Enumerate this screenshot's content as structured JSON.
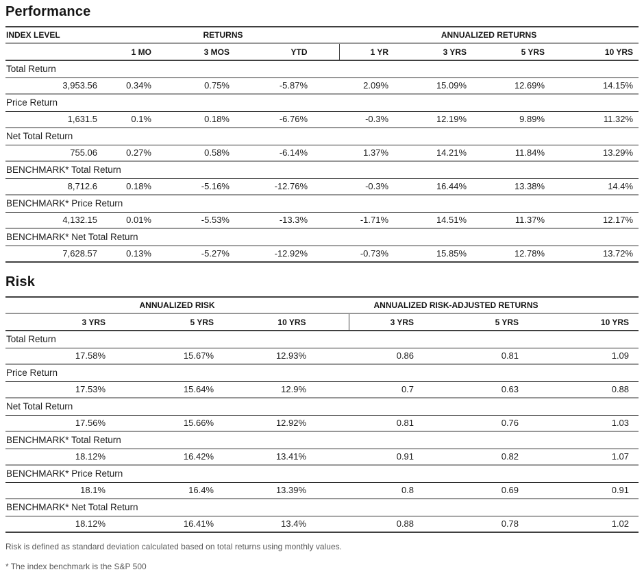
{
  "colors": {
    "rule_dark": "#404040",
    "rule_gray": "#979797",
    "text": "#141414",
    "footnote_text": "#595959"
  },
  "performance": {
    "title": "Performance",
    "headers": {
      "index_level": "INDEX LEVEL",
      "returns_group": "RETURNS",
      "annualized_group": "ANNUALIZED RETURNS",
      "sub": [
        "1 MO",
        "3 MOS",
        "YTD",
        "1 YR",
        "3 YRS",
        "5 YRS",
        "10 YRS"
      ]
    },
    "row_cell_keys": [
      "index_level",
      "returns",
      "annualized_returns"
    ],
    "rows": [
      {
        "label": "Total Return",
        "index_level": "3,953.56",
        "returns": [
          "0.34%",
          "0.75%",
          "-5.87%"
        ],
        "annualized_returns": [
          "2.09%",
          "15.09%",
          "12.69%",
          "14.15%"
        ]
      },
      {
        "label": "Price Return",
        "index_level": "1,631.5",
        "returns": [
          "0.1%",
          "0.18%",
          "-6.76%"
        ],
        "annualized_returns": [
          "-0.3%",
          "12.19%",
          "9.89%",
          "11.32%"
        ]
      },
      {
        "label": "Net Total Return",
        "index_level": "755.06",
        "returns": [
          "0.27%",
          "0.58%",
          "-6.14%"
        ],
        "annualized_returns": [
          "1.37%",
          "14.21%",
          "11.84%",
          "13.29%"
        ]
      },
      {
        "label": "BENCHMARK* Total Return",
        "index_level": "8,712.6",
        "returns": [
          "0.18%",
          "-5.16%",
          "-12.76%"
        ],
        "annualized_returns": [
          "-0.3%",
          "16.44%",
          "13.38%",
          "14.4%"
        ]
      },
      {
        "label": "BENCHMARK* Price Return",
        "index_level": "4,132.15",
        "returns": [
          "0.01%",
          "-5.53%",
          "-13.3%"
        ],
        "annualized_returns": [
          "-1.71%",
          "14.51%",
          "11.37%",
          "12.17%"
        ]
      },
      {
        "label": "BENCHMARK* Net Total Return",
        "index_level": "7,628.57",
        "returns": [
          "0.13%",
          "-5.27%",
          "-12.92%"
        ],
        "annualized_returns": [
          "-0.73%",
          "15.85%",
          "12.78%",
          "13.72%"
        ]
      }
    ]
  },
  "risk": {
    "title": "Risk",
    "headers": {
      "risk_group": "ANNUALIZED RISK",
      "risk_adjusted_group": "ANNUALIZED RISK-ADJUSTED RETURNS",
      "sub": [
        "3 YRS",
        "5 YRS",
        "10 YRS",
        "3 YRS",
        "5 YRS",
        "10 YRS"
      ]
    },
    "row_cell_keys": [
      "annualized_risk",
      "risk_adjusted_returns"
    ],
    "rows": [
      {
        "label": "Total Return",
        "annualized_risk": [
          "17.58%",
          "15.67%",
          "12.93%"
        ],
        "risk_adjusted_returns": [
          "0.86",
          "0.81",
          "1.09"
        ]
      },
      {
        "label": "Price Return",
        "annualized_risk": [
          "17.53%",
          "15.64%",
          "12.9%"
        ],
        "risk_adjusted_returns": [
          "0.7",
          "0.63",
          "0.88"
        ]
      },
      {
        "label": "Net Total Return",
        "annualized_risk": [
          "17.56%",
          "15.66%",
          "12.92%"
        ],
        "risk_adjusted_returns": [
          "0.81",
          "0.76",
          "1.03"
        ]
      },
      {
        "label": "BENCHMARK* Total Return",
        "annualized_risk": [
          "18.12%",
          "16.42%",
          "13.41%"
        ],
        "risk_adjusted_returns": [
          "0.91",
          "0.82",
          "1.07"
        ]
      },
      {
        "label": "BENCHMARK* Price Return",
        "annualized_risk": [
          "18.1%",
          "16.4%",
          "13.39%"
        ],
        "risk_adjusted_returns": [
          "0.8",
          "0.69",
          "0.91"
        ]
      },
      {
        "label": "BENCHMARK* Net Total Return",
        "annualized_risk": [
          "18.12%",
          "16.41%",
          "13.4%"
        ],
        "risk_adjusted_returns": [
          "0.88",
          "0.78",
          "1.02"
        ]
      }
    ]
  },
  "footnotes": [
    "Risk is defined as standard deviation calculated based on total returns using monthly values.",
    "* The index benchmark is the  S&P 500"
  ]
}
